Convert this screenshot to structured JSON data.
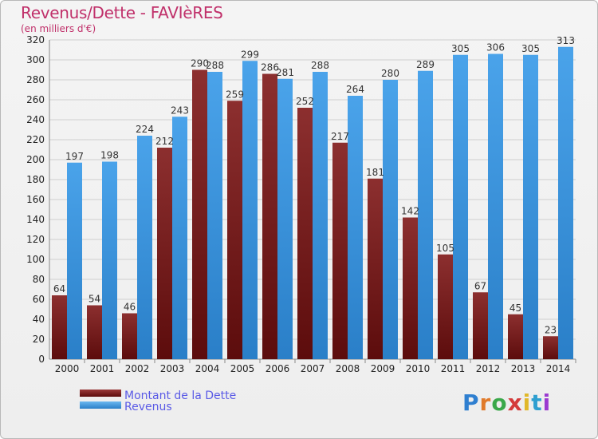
{
  "title": "Revenus/Dette - FAVIèRES",
  "subtitle": "(en milliers d'€)",
  "logo_text": "Proxiti",
  "colors": {
    "dette": "#7a1c1c",
    "revenus": "#3a93dc",
    "title": "#c0306a"
  },
  "chart_data": {
    "type": "bar",
    "categories": [
      "2000",
      "2001",
      "2002",
      "2003",
      "2004",
      "2005",
      "2006",
      "2007",
      "2008",
      "2009",
      "2010",
      "2011",
      "2012",
      "2013",
      "2014"
    ],
    "series": [
      {
        "name": "Montant de la Dette",
        "values": [
          64,
          54,
          46,
          212,
          290,
          259,
          286,
          252,
          217,
          181,
          142,
          105,
          67,
          45,
          23
        ]
      },
      {
        "name": "Revenus",
        "values": [
          197,
          198,
          224,
          243,
          288,
          299,
          281,
          288,
          264,
          280,
          289,
          305,
          306,
          305,
          313
        ]
      }
    ],
    "ylim": [
      0,
      320
    ],
    "yticks": [
      0,
      20,
      40,
      60,
      80,
      100,
      120,
      140,
      160,
      180,
      200,
      220,
      240,
      260,
      280,
      300,
      320
    ],
    "grid": true,
    "legend_position": "bottom-left"
  }
}
